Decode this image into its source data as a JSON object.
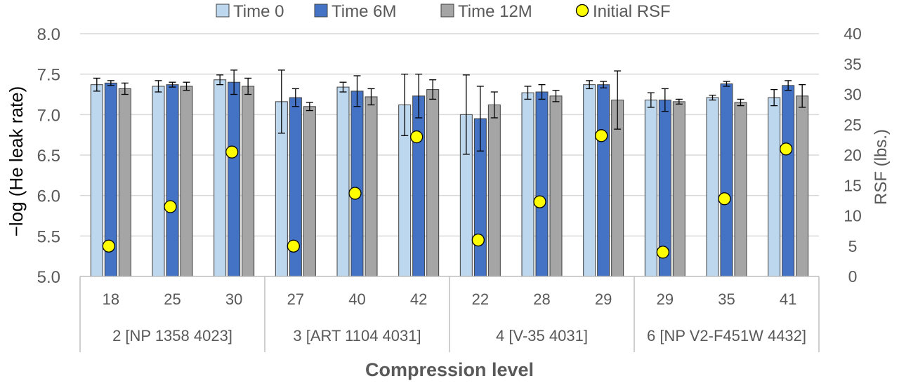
{
  "chart_data": {
    "type": "bar",
    "xlabel": "Compression level",
    "ylabel_left": "−log (He leak rate)",
    "ylabel_right": "RSF (lbs.)",
    "ylim_left": [
      5.0,
      8.0
    ],
    "ylim_right": [
      0,
      40
    ],
    "yticks_left": [
      "5.0",
      "5.5",
      "6.0",
      "6.5",
      "7.0",
      "7.5",
      "8.0"
    ],
    "yticks_right": [
      "0",
      "5",
      "10",
      "15",
      "20",
      "25",
      "30",
      "35",
      "40"
    ],
    "grid": true,
    "legend_position": "top",
    "groups": [
      {
        "label": "2 [NP 1358 4023]",
        "categories": [
          "18",
          "25",
          "30"
        ]
      },
      {
        "label": "3 [ART 1104 4031]",
        "categories": [
          "27",
          "40",
          "42"
        ]
      },
      {
        "label": "4 [V-35 4031]",
        "categories": [
          "22",
          "28",
          "29"
        ]
      },
      {
        "label": "6 [NP V2-F451W 4432]",
        "categories": [
          "29",
          "35",
          "41"
        ]
      }
    ],
    "series": [
      {
        "name": "Time 0",
        "color": "#bdd7ee",
        "axis": "left",
        "values": [
          7.37,
          7.35,
          7.43,
          7.16,
          7.34,
          7.12,
          7.0,
          7.27,
          7.37,
          7.18,
          7.21,
          7.21
        ],
        "errors": [
          0.08,
          0.07,
          0.06,
          0.39,
          0.06,
          0.38,
          0.49,
          0.08,
          0.05,
          0.09,
          0.03,
          0.1
        ]
      },
      {
        "name": "Time 6M",
        "color": "#4472c4",
        "axis": "left",
        "values": [
          7.39,
          7.37,
          7.4,
          7.21,
          7.29,
          7.23,
          6.95,
          7.28,
          7.37,
          7.18,
          7.38,
          7.36
        ],
        "errors": [
          0.03,
          0.03,
          0.15,
          0.11,
          0.19,
          0.27,
          0.4,
          0.09,
          0.04,
          0.14,
          0.03,
          0.06
        ]
      },
      {
        "name": "Time 12M",
        "color": "#a5a5a5",
        "axis": "left",
        "values": [
          7.32,
          7.35,
          7.35,
          7.1,
          7.22,
          7.31,
          7.12,
          7.23,
          7.18,
          7.16,
          7.15,
          7.23
        ],
        "errors": [
          0.07,
          0.05,
          0.1,
          0.05,
          0.1,
          0.12,
          0.16,
          0.07,
          0.36,
          0.03,
          0.04,
          0.14
        ]
      },
      {
        "name": "Initial RSF",
        "color": "#ffff00",
        "axis": "right",
        "marker": "circle",
        "values": [
          5,
          11.5,
          20.5,
          5,
          13.7,
          23,
          6,
          12.3,
          23.2,
          4,
          12.8,
          21
        ]
      }
    ]
  }
}
